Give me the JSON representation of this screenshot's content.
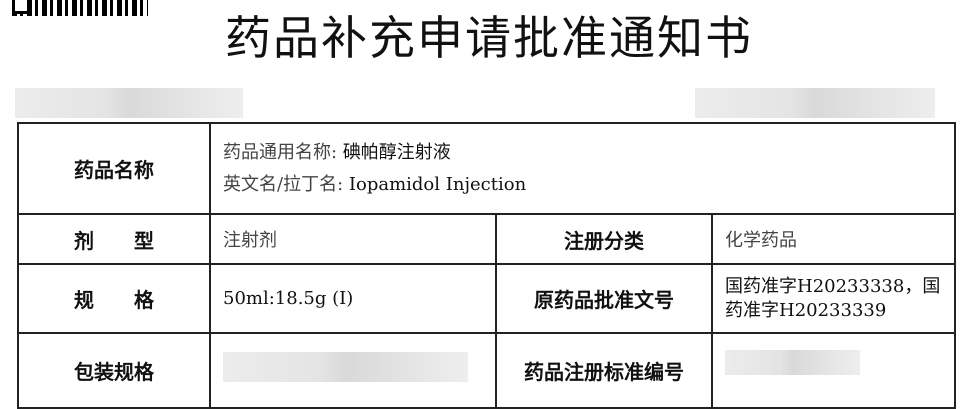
{
  "title": "药品补充申请批准通知书",
  "rows": {
    "name": {
      "label": "药品名称",
      "common_label": "药品通用名称:",
      "common_value": "碘帕醇注射液",
      "en_label": "英文名/拉丁名:",
      "en_value": "Iopamidol Injection"
    },
    "form": {
      "label": "剂　　型",
      "value": "注射剂",
      "reg_label": "注册分类",
      "reg_value": "化学药品"
    },
    "spec": {
      "label": "规　　格",
      "value": "50ml:18.5g (I)",
      "orig_label": "原药品批准文号",
      "orig_value": "国药准字H20233338，国药准字H20233339"
    },
    "pack": {
      "label": "包装规格",
      "std_label": "药品注册标准编号"
    }
  }
}
